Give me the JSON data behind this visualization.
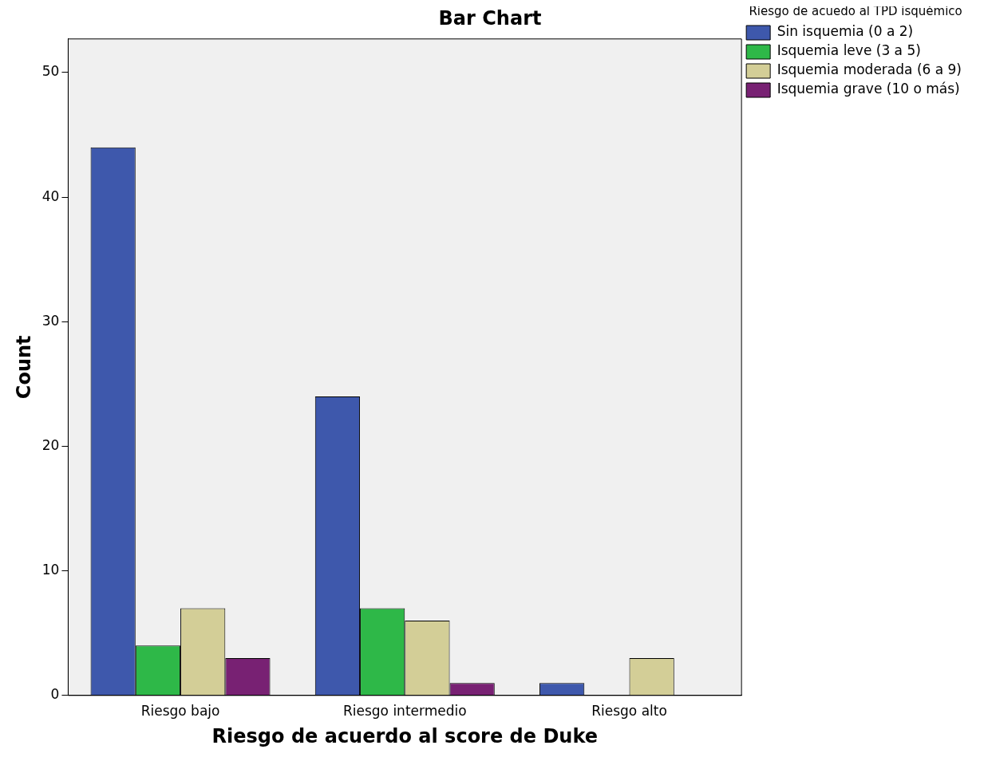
{
  "chart_data": {
    "type": "bar",
    "title": "Bar Chart",
    "xlabel": "Riesgo de acuerdo al score de Duke",
    "ylabel": "Count",
    "legend_title": "Riesgo de acuedo al TPD isquémico",
    "categories": [
      "Riesgo bajo",
      "Riesgo intermedio",
      "Riesgo alto"
    ],
    "series": [
      {
        "name": "Sin isquemia (0 a 2)",
        "color": "#3e58ac",
        "values": [
          44,
          24,
          1
        ]
      },
      {
        "name": "Isquemia leve (3 a 5)",
        "color": "#2eb848",
        "values": [
          4,
          7,
          0
        ]
      },
      {
        "name": "Isquemia moderada (6 a 9)",
        "color": "#d3ce97",
        "values": [
          7,
          6,
          3
        ]
      },
      {
        "name": "Isquemia grave (10 o más)",
        "color": "#782173",
        "values": [
          3,
          1,
          0
        ]
      }
    ],
    "ylim": [
      0,
      52.7
    ],
    "yticks": [
      0,
      10,
      20,
      30,
      40,
      50
    ],
    "grid": false,
    "legend": "top right"
  }
}
